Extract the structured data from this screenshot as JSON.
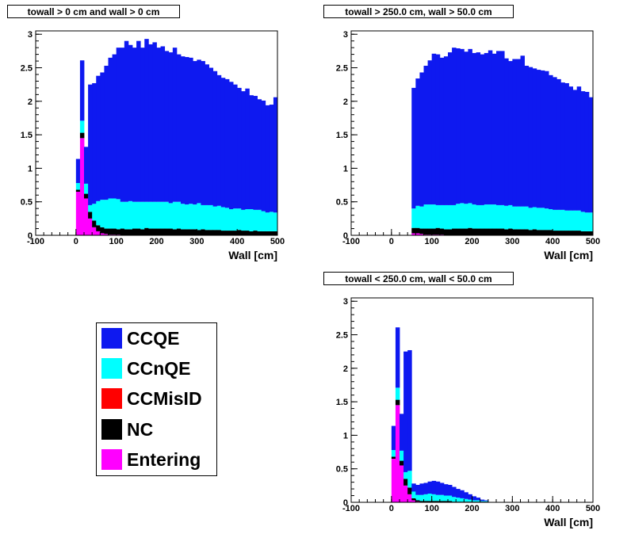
{
  "chart_data": [
    {
      "type": "bar",
      "stacked": true,
      "title": "towall > 0 cm and wall > 0 cm",
      "xlabel": "Wall [cm]",
      "ylabel": "",
      "xlim": [
        -100,
        500
      ],
      "ylim": [
        0,
        3.05
      ],
      "xticks": [
        -100,
        0,
        100,
        200,
        300,
        400,
        500
      ],
      "yticks": [
        0,
        0.5,
        1,
        1.5,
        2,
        2.5,
        3
      ],
      "bin_edges": [
        -10,
        0,
        10,
        20,
        30,
        40,
        50,
        60,
        70,
        80,
        90,
        100,
        110,
        120,
        130,
        140,
        150,
        160,
        170,
        180,
        190,
        200,
        210,
        220,
        230,
        240,
        250,
        260,
        270,
        280,
        290,
        300,
        310,
        320,
        330,
        340,
        350,
        360,
        370,
        380,
        390,
        400,
        410,
        420,
        430,
        440,
        450,
        460,
        470,
        480,
        490,
        500
      ],
      "series": [
        {
          "name": "Entering",
          "values": [
            0,
            0.65,
            1.45,
            0.55,
            0.25,
            0.12,
            0.06,
            0.03,
            0.02,
            0.01,
            0.01,
            0.01,
            0,
            0,
            0,
            0,
            0,
            0,
            0,
            0,
            0,
            0,
            0,
            0,
            0,
            0,
            0,
            0,
            0,
            0,
            0,
            0,
            0,
            0,
            0,
            0,
            0,
            0,
            0,
            0,
            0,
            0,
            0,
            0,
            0,
            0,
            0,
            0,
            0,
            0,
            0
          ]
        },
        {
          "name": "NC",
          "values": [
            0,
            0.03,
            0.08,
            0.07,
            0.1,
            0.1,
            0.09,
            0.09,
            0.08,
            0.09,
            0.09,
            0.08,
            0.1,
            0.09,
            0.09,
            0.1,
            0.1,
            0.09,
            0.11,
            0.1,
            0.1,
            0.1,
            0.1,
            0.1,
            0.1,
            0.09,
            0.1,
            0.09,
            0.09,
            0.09,
            0.09,
            0.08,
            0.09,
            0.08,
            0.08,
            0.08,
            0.08,
            0.07,
            0.07,
            0.07,
            0.07,
            0.08,
            0.07,
            0.07,
            0.06,
            0.07,
            0.06,
            0.06,
            0.06,
            0.06,
            0.06
          ]
        },
        {
          "name": "CCMisID",
          "values": [
            0,
            0,
            0,
            0,
            0,
            0,
            0,
            0,
            0,
            0,
            0,
            0,
            0,
            0,
            0,
            0,
            0,
            0,
            0,
            0,
            0,
            0,
            0,
            0,
            0,
            0,
            0,
            0,
            0,
            0,
            0,
            0,
            0,
            0,
            0,
            0,
            0,
            0,
            0,
            0,
            0,
            0,
            0,
            0,
            0,
            0,
            0,
            0,
            0,
            0,
            0
          ]
        },
        {
          "name": "CCnQE",
          "values": [
            0,
            0.1,
            0.18,
            0.15,
            0.1,
            0.25,
            0.36,
            0.41,
            0.43,
            0.45,
            0.45,
            0.45,
            0.4,
            0.41,
            0.42,
            0.4,
            0.4,
            0.41,
            0.39,
            0.4,
            0.4,
            0.4,
            0.4,
            0.4,
            0.38,
            0.41,
            0.4,
            0.38,
            0.37,
            0.38,
            0.37,
            0.4,
            0.36,
            0.37,
            0.37,
            0.35,
            0.36,
            0.35,
            0.34,
            0.32,
            0.33,
            0.32,
            0.31,
            0.32,
            0.33,
            0.31,
            0.32,
            0.3,
            0.28,
            0.29,
            0.28
          ]
        },
        {
          "name": "CCQE",
          "values": [
            0,
            0.36,
            0.9,
            0.55,
            1.8,
            1.8,
            1.87,
            1.9,
            2.0,
            2.1,
            2.15,
            2.26,
            2.3,
            2.4,
            2.33,
            2.3,
            2.4,
            2.3,
            2.43,
            2.35,
            2.38,
            2.3,
            2.32,
            2.25,
            2.25,
            2.3,
            2.2,
            2.2,
            2.2,
            2.18,
            2.14,
            2.14,
            2.15,
            2.1,
            2.05,
            2.02,
            1.95,
            1.93,
            1.92,
            1.9,
            1.85,
            1.8,
            1.77,
            1.8,
            1.7,
            1.7,
            1.65,
            1.65,
            1.6,
            1.6,
            1.72
          ]
        }
      ]
    },
    {
      "type": "bar",
      "stacked": true,
      "title": "towall > 250.0 cm, wall > 50.0 cm",
      "xlabel": "Wall [cm]",
      "ylabel": "",
      "xlim": [
        -100,
        500
      ],
      "ylim": [
        0,
        3.05
      ],
      "xticks": [
        -100,
        0,
        100,
        200,
        300,
        400,
        500
      ],
      "yticks": [
        0,
        0.5,
        1,
        1.5,
        2,
        2.5,
        3
      ],
      "bin_edges": [
        50,
        60,
        70,
        80,
        90,
        100,
        110,
        120,
        130,
        140,
        150,
        160,
        170,
        180,
        190,
        200,
        210,
        220,
        230,
        240,
        250,
        260,
        270,
        280,
        290,
        300,
        310,
        320,
        330,
        340,
        350,
        360,
        370,
        380,
        390,
        400,
        410,
        420,
        430,
        440,
        450,
        460,
        470,
        480,
        490,
        500
      ],
      "series": [
        {
          "name": "Entering",
          "values": [
            0.03,
            0.03,
            0.02,
            0.01,
            0.01,
            0.01,
            0.01,
            0.01,
            0,
            0,
            0,
            0,
            0,
            0,
            0,
            0,
            0,
            0,
            0,
            0,
            0,
            0,
            0,
            0,
            0,
            0,
            0,
            0,
            0,
            0,
            0,
            0,
            0,
            0,
            0,
            0,
            0,
            0,
            0,
            0,
            0,
            0,
            0,
            0,
            0
          ]
        },
        {
          "name": "NC",
          "values": [
            0.08,
            0.08,
            0.08,
            0.09,
            0.09,
            0.09,
            0.1,
            0.09,
            0.09,
            0.09,
            0.1,
            0.1,
            0.1,
            0.1,
            0.11,
            0.1,
            0.1,
            0.1,
            0.1,
            0.1,
            0.1,
            0.1,
            0.1,
            0.09,
            0.1,
            0.09,
            0.09,
            0.09,
            0.09,
            0.08,
            0.09,
            0.08,
            0.08,
            0.08,
            0.08,
            0.07,
            0.07,
            0.07,
            0.07,
            0.07,
            0.07,
            0.07,
            0.06,
            0.06,
            0.06
          ]
        },
        {
          "name": "CCMisID",
          "values": [
            0,
            0,
            0,
            0,
            0,
            0,
            0,
            0,
            0,
            0,
            0,
            0,
            0,
            0,
            0,
            0,
            0,
            0,
            0,
            0,
            0,
            0,
            0,
            0,
            0,
            0,
            0,
            0,
            0,
            0,
            0,
            0,
            0,
            0,
            0,
            0,
            0,
            0,
            0,
            0,
            0,
            0,
            0,
            0,
            0
          ]
        },
        {
          "name": "CCnQE",
          "values": [
            0.29,
            0.33,
            0.33,
            0.36,
            0.36,
            0.36,
            0.34,
            0.35,
            0.36,
            0.36,
            0.35,
            0.37,
            0.38,
            0.37,
            0.37,
            0.36,
            0.35,
            0.35,
            0.36,
            0.36,
            0.36,
            0.35,
            0.35,
            0.35,
            0.35,
            0.34,
            0.34,
            0.34,
            0.34,
            0.33,
            0.33,
            0.33,
            0.33,
            0.32,
            0.31,
            0.31,
            0.31,
            0.31,
            0.3,
            0.3,
            0.3,
            0.3,
            0.29,
            0.28,
            0.28
          ]
        },
        {
          "name": "CCQE",
          "values": [
            1.8,
            1.9,
            2.0,
            2.07,
            2.15,
            2.25,
            2.25,
            2.2,
            2.22,
            2.28,
            2.35,
            2.32,
            2.3,
            2.27,
            2.3,
            2.26,
            2.28,
            2.25,
            2.26,
            2.3,
            2.25,
            2.3,
            2.3,
            2.2,
            2.15,
            2.2,
            2.2,
            2.25,
            2.1,
            2.1,
            2.07,
            2.06,
            2.05,
            2.05,
            2.0,
            1.98,
            1.95,
            1.9,
            1.9,
            1.85,
            1.8,
            1.85,
            1.8,
            1.8,
            1.72
          ]
        }
      ]
    },
    {
      "type": "bar",
      "stacked": true,
      "title": "towall < 250.0 cm, wall < 50.0 cm",
      "xlabel": "Wall [cm]",
      "ylabel": "",
      "xlim": [
        -100,
        500
      ],
      "ylim": [
        0,
        3.05
      ],
      "xticks": [
        -100,
        0,
        100,
        200,
        300,
        400,
        500
      ],
      "yticks": [
        0,
        0.5,
        1,
        1.5,
        2,
        2.5,
        3
      ],
      "bin_edges": [
        -10,
        0,
        10,
        20,
        30,
        40,
        50,
        60,
        70,
        80,
        90,
        100,
        110,
        120,
        130,
        140,
        150,
        160,
        170,
        180,
        190,
        200,
        210,
        220,
        230,
        240,
        250
      ],
      "series": [
        {
          "name": "Entering",
          "values": [
            0,
            0.65,
            1.45,
            0.55,
            0.25,
            0.12,
            0.03,
            0.01,
            0,
            0,
            0,
            0,
            0,
            0,
            0,
            0,
            0,
            0,
            0,
            0,
            0,
            0,
            0,
            0,
            0,
            0
          ]
        },
        {
          "name": "NC",
          "values": [
            0,
            0.03,
            0.08,
            0.07,
            0.1,
            0.1,
            0.03,
            0.02,
            0.02,
            0.02,
            0.02,
            0.02,
            0.02,
            0.02,
            0.02,
            0.02,
            0.01,
            0.01,
            0.01,
            0.01,
            0.01,
            0.01,
            0.01,
            0.01,
            0.01,
            0
          ]
        },
        {
          "name": "CCMisID",
          "values": [
            0,
            0,
            0,
            0,
            0,
            0,
            0,
            0,
            0,
            0,
            0,
            0,
            0,
            0,
            0,
            0,
            0,
            0,
            0,
            0,
            0,
            0,
            0,
            0,
            0,
            0
          ]
        },
        {
          "name": "CCnQE",
          "values": [
            0,
            0.1,
            0.18,
            0.15,
            0.1,
            0.25,
            0.1,
            0.08,
            0.09,
            0.1,
            0.11,
            0.1,
            0.09,
            0.09,
            0.08,
            0.08,
            0.07,
            0.06,
            0.05,
            0.04,
            0.03,
            0.02,
            0.02,
            0.01,
            0.01,
            0
          ]
        },
        {
          "name": "CCQE",
          "values": [
            0,
            0.36,
            0.9,
            0.55,
            1.8,
            1.8,
            0.12,
            0.15,
            0.17,
            0.17,
            0.18,
            0.2,
            0.2,
            0.18,
            0.17,
            0.16,
            0.15,
            0.13,
            0.12,
            0.1,
            0.08,
            0.06,
            0.04,
            0.02,
            0.01,
            0
          ]
        }
      ]
    }
  ],
  "legend": {
    "items": [
      {
        "label": "CCQE",
        "color": "#0e19f0"
      },
      {
        "label": "CCnQE",
        "color": "#00ffff"
      },
      {
        "label": "CCMisID",
        "color": "#ff0000"
      },
      {
        "label": "NC",
        "color": "#000000"
      },
      {
        "label": "Entering",
        "color": "#ff00ff"
      }
    ]
  },
  "colors": {
    "CCQE": "#0e19f0",
    "CCnQE": "#00ffff",
    "CCMisID": "#ff0000",
    "NC": "#000000",
    "Entering": "#ff00ff"
  }
}
